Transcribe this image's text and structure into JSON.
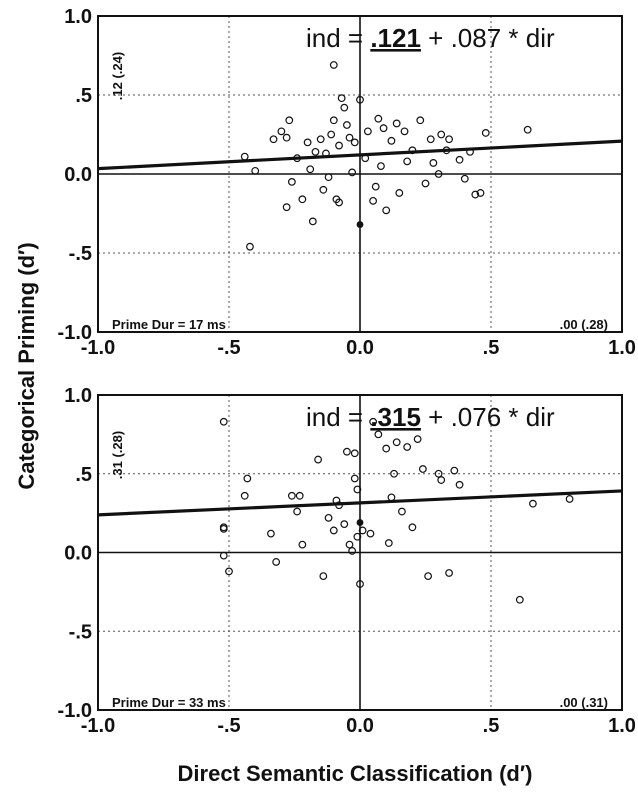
{
  "figure": {
    "ylabel": "Categorical Priming (d′)",
    "xlabel": "Direct Semantic Classification (d′)"
  },
  "chart_data": [
    {
      "type": "scatter",
      "equation": {
        "prefix": "ind = ",
        "intercept": ".121",
        "suffix": " + .087 * dir"
      },
      "side_label": ".12 (.24)",
      "bottom_left_label": "Prime Dur = 17 ms",
      "bottom_right_label": ".00 (.28)",
      "xlim": [
        -1.0,
        1.0
      ],
      "ylim": [
        -1.0,
        1.0
      ],
      "xticks": [
        "-1.0",
        "-.5",
        "0.0",
        ".5",
        "1.0"
      ],
      "yticks": [
        "1.0",
        ".5",
        "0.0",
        "-.5",
        "-1.0"
      ],
      "grid": true,
      "regression": {
        "intercept": 0.121,
        "slope": 0.087
      },
      "points": [
        {
          "x": -0.42,
          "y": -0.46
        },
        {
          "x": -0.44,
          "y": 0.11
        },
        {
          "x": -0.4,
          "y": 0.02
        },
        {
          "x": -0.33,
          "y": 0.22
        },
        {
          "x": -0.3,
          "y": 0.27
        },
        {
          "x": -0.28,
          "y": 0.23
        },
        {
          "x": -0.27,
          "y": 0.34
        },
        {
          "x": -0.26,
          "y": -0.05
        },
        {
          "x": -0.28,
          "y": -0.21
        },
        {
          "x": -0.24,
          "y": 0.1
        },
        {
          "x": -0.22,
          "y": -0.16
        },
        {
          "x": -0.2,
          "y": 0.2
        },
        {
          "x": -0.19,
          "y": 0.03
        },
        {
          "x": -0.18,
          "y": -0.3
        },
        {
          "x": -0.17,
          "y": 0.14
        },
        {
          "x": -0.15,
          "y": 0.22
        },
        {
          "x": -0.14,
          "y": -0.1
        },
        {
          "x": -0.13,
          "y": 0.13
        },
        {
          "x": -0.12,
          "y": -0.02
        },
        {
          "x": -0.11,
          "y": 0.25
        },
        {
          "x": -0.1,
          "y": 0.34
        },
        {
          "x": -0.09,
          "y": -0.16
        },
        {
          "x": -0.08,
          "y": -0.18
        },
        {
          "x": -0.08,
          "y": 0.18
        },
        {
          "x": -0.07,
          "y": 0.48
        },
        {
          "x": -0.06,
          "y": 0.42
        },
        {
          "x": -0.05,
          "y": 0.31
        },
        {
          "x": -0.04,
          "y": 0.23
        },
        {
          "x": -0.03,
          "y": 0.01
        },
        {
          "x": -0.02,
          "y": 0.2
        },
        {
          "x": -0.1,
          "y": 0.69
        },
        {
          "x": 0.0,
          "y": 0.47
        },
        {
          "x": 0.02,
          "y": 0.1
        },
        {
          "x": 0.03,
          "y": 0.27
        },
        {
          "x": 0.05,
          "y": -0.17
        },
        {
          "x": 0.06,
          "y": -0.08
        },
        {
          "x": 0.07,
          "y": 0.35
        },
        {
          "x": 0.08,
          "y": 0.05
        },
        {
          "x": 0.09,
          "y": 0.29
        },
        {
          "x": 0.1,
          "y": -0.23
        },
        {
          "x": 0.12,
          "y": 0.21
        },
        {
          "x": 0.14,
          "y": 0.32
        },
        {
          "x": 0.15,
          "y": -0.12
        },
        {
          "x": 0.17,
          "y": 0.27
        },
        {
          "x": 0.18,
          "y": 0.08
        },
        {
          "x": 0.2,
          "y": 0.15
        },
        {
          "x": 0.23,
          "y": 0.34
        },
        {
          "x": 0.25,
          "y": -0.06
        },
        {
          "x": 0.27,
          "y": 0.22
        },
        {
          "x": 0.28,
          "y": 0.07
        },
        {
          "x": 0.3,
          "y": 0.0
        },
        {
          "x": 0.31,
          "y": 0.25
        },
        {
          "x": 0.33,
          "y": 0.15
        },
        {
          "x": 0.34,
          "y": 0.22
        },
        {
          "x": 0.38,
          "y": 0.09
        },
        {
          "x": 0.4,
          "y": -0.03
        },
        {
          "x": 0.42,
          "y": 0.14
        },
        {
          "x": 0.44,
          "y": -0.13
        },
        {
          "x": 0.46,
          "y": -0.12
        },
        {
          "x": 0.48,
          "y": 0.26
        },
        {
          "x": 0.64,
          "y": 0.28
        }
      ],
      "highlighted_points": [
        {
          "x": 0.0,
          "y": -0.32
        }
      ]
    },
    {
      "type": "scatter",
      "equation": {
        "prefix": "ind = ",
        "intercept": ".315",
        "suffix": " + .076 * dir"
      },
      "side_label": ".31 (.28)",
      "bottom_left_label": "Prime Dur = 33 ms",
      "bottom_right_label": ".00 (.31)",
      "xlim": [
        -1.0,
        1.0
      ],
      "ylim": [
        -1.0,
        1.0
      ],
      "xticks": [
        "-1.0",
        "-.5",
        "0.0",
        ".5",
        "1.0"
      ],
      "yticks": [
        "1.0",
        ".5",
        "0.0",
        "-.5",
        "-1.0"
      ],
      "grid": true,
      "regression": {
        "intercept": 0.315,
        "slope": 0.076
      },
      "points": [
        {
          "x": -0.52,
          "y": 0.83
        },
        {
          "x": -0.52,
          "y": 0.16
        },
        {
          "x": -0.52,
          "y": 0.15
        },
        {
          "x": -0.52,
          "y": -0.02
        },
        {
          "x": -0.5,
          "y": -0.12
        },
        {
          "x": -0.43,
          "y": 0.47
        },
        {
          "x": -0.44,
          "y": 0.36
        },
        {
          "x": -0.34,
          "y": 0.12
        },
        {
          "x": -0.32,
          "y": -0.06
        },
        {
          "x": -0.26,
          "y": 0.36
        },
        {
          "x": -0.23,
          "y": 0.36
        },
        {
          "x": -0.24,
          "y": 0.26
        },
        {
          "x": -0.22,
          "y": 0.05
        },
        {
          "x": -0.16,
          "y": 0.59
        },
        {
          "x": -0.14,
          "y": -0.15
        },
        {
          "x": -0.12,
          "y": 0.22
        },
        {
          "x": -0.1,
          "y": 0.14
        },
        {
          "x": -0.09,
          "y": 0.33
        },
        {
          "x": -0.08,
          "y": 0.3
        },
        {
          "x": -0.06,
          "y": 0.18
        },
        {
          "x": -0.05,
          "y": 0.64
        },
        {
          "x": -0.04,
          "y": 0.05
        },
        {
          "x": -0.03,
          "y": 0.01
        },
        {
          "x": -0.02,
          "y": 0.47
        },
        {
          "x": -0.02,
          "y": 0.63
        },
        {
          "x": -0.01,
          "y": 0.4
        },
        {
          "x": -0.01,
          "y": 0.1
        },
        {
          "x": 0.0,
          "y": -0.2
        },
        {
          "x": 0.01,
          "y": 0.14
        },
        {
          "x": 0.04,
          "y": 0.12
        },
        {
          "x": 0.05,
          "y": 0.83
        },
        {
          "x": 0.07,
          "y": 0.75
        },
        {
          "x": 0.1,
          "y": 0.66
        },
        {
          "x": 0.11,
          "y": 0.06
        },
        {
          "x": 0.12,
          "y": 0.35
        },
        {
          "x": 0.13,
          "y": 0.5
        },
        {
          "x": 0.14,
          "y": 0.7
        },
        {
          "x": 0.16,
          "y": 0.26
        },
        {
          "x": 0.18,
          "y": 0.67
        },
        {
          "x": 0.2,
          "y": 0.16
        },
        {
          "x": 0.22,
          "y": 0.72
        },
        {
          "x": 0.24,
          "y": 0.53
        },
        {
          "x": 0.26,
          "y": -0.15
        },
        {
          "x": 0.3,
          "y": 0.5
        },
        {
          "x": 0.31,
          "y": 0.46
        },
        {
          "x": 0.34,
          "y": -0.13
        },
        {
          "x": 0.36,
          "y": 0.52
        },
        {
          "x": 0.38,
          "y": 0.43
        },
        {
          "x": 0.61,
          "y": -0.3
        },
        {
          "x": 0.66,
          "y": 0.31
        },
        {
          "x": 0.8,
          "y": 0.34
        }
      ],
      "highlighted_points": [
        {
          "x": 0.0,
          "y": 0.19
        }
      ]
    }
  ]
}
